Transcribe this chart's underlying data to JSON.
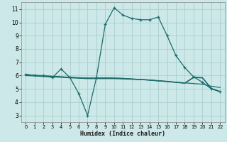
{
  "title": "",
  "xlabel": "Humidex (Indice chaleur)",
  "bg_color": "#cce8e8",
  "grid_color": "#aacece",
  "line_color": "#1a6b6b",
  "xlim": [
    -0.5,
    22.5
  ],
  "ylim": [
    2.5,
    11.5
  ],
  "yticks": [
    3,
    4,
    5,
    6,
    7,
    8,
    9,
    10,
    11
  ],
  "xticks": [
    0,
    1,
    2,
    3,
    4,
    5,
    6,
    7,
    8,
    9,
    10,
    11,
    12,
    13,
    14,
    15,
    16,
    17,
    18,
    19,
    20,
    21,
    22
  ],
  "series_main": {
    "x": [
      0,
      1,
      2,
      3,
      4,
      5,
      6,
      7,
      8,
      9,
      10,
      11,
      12,
      13,
      14,
      15,
      16,
      17,
      18,
      19,
      20,
      21,
      22
    ],
    "y": [
      6.1,
      6.0,
      6.0,
      5.85,
      6.5,
      5.85,
      4.65,
      3.0,
      5.85,
      9.85,
      11.1,
      10.55,
      10.3,
      10.2,
      10.2,
      10.4,
      9.0,
      7.5,
      6.6,
      5.9,
      5.5,
      5.0,
      4.8
    ]
  },
  "series_flat": [
    {
      "x": [
        0,
        1,
        2,
        3,
        4,
        5,
        6,
        7,
        8,
        9,
        10,
        11,
        12,
        13,
        14,
        15,
        16,
        17,
        18,
        19,
        20,
        21,
        22
      ],
      "y": [
        6.0,
        5.97,
        5.93,
        5.9,
        5.87,
        5.83,
        5.8,
        5.77,
        5.77,
        5.77,
        5.77,
        5.75,
        5.72,
        5.7,
        5.67,
        5.6,
        5.55,
        5.5,
        5.45,
        5.4,
        5.35,
        5.2,
        5.1
      ]
    },
    {
      "x": [
        0,
        1,
        2,
        3,
        4,
        5,
        6,
        7,
        8,
        9,
        10,
        11,
        12,
        13,
        14,
        15,
        16,
        17,
        18,
        19,
        20,
        21,
        22
      ],
      "y": [
        6.05,
        6.01,
        5.97,
        5.94,
        5.9,
        5.86,
        5.83,
        5.8,
        5.8,
        5.82,
        5.8,
        5.78,
        5.74,
        5.7,
        5.65,
        5.6,
        5.55,
        5.48,
        5.42,
        5.85,
        5.82,
        5.02,
        4.78
      ]
    },
    {
      "x": [
        0,
        1,
        2,
        3,
        4,
        5,
        6,
        7,
        8,
        9,
        10,
        11,
        12,
        13,
        14,
        15,
        16,
        17,
        18,
        19,
        20,
        21,
        22
      ],
      "y": [
        6.07,
        6.02,
        5.98,
        5.95,
        5.91,
        5.87,
        5.84,
        5.82,
        5.82,
        5.83,
        5.82,
        5.79,
        5.75,
        5.71,
        5.67,
        5.62,
        5.57,
        5.5,
        5.44,
        5.88,
        5.85,
        5.04,
        4.8
      ]
    }
  ]
}
